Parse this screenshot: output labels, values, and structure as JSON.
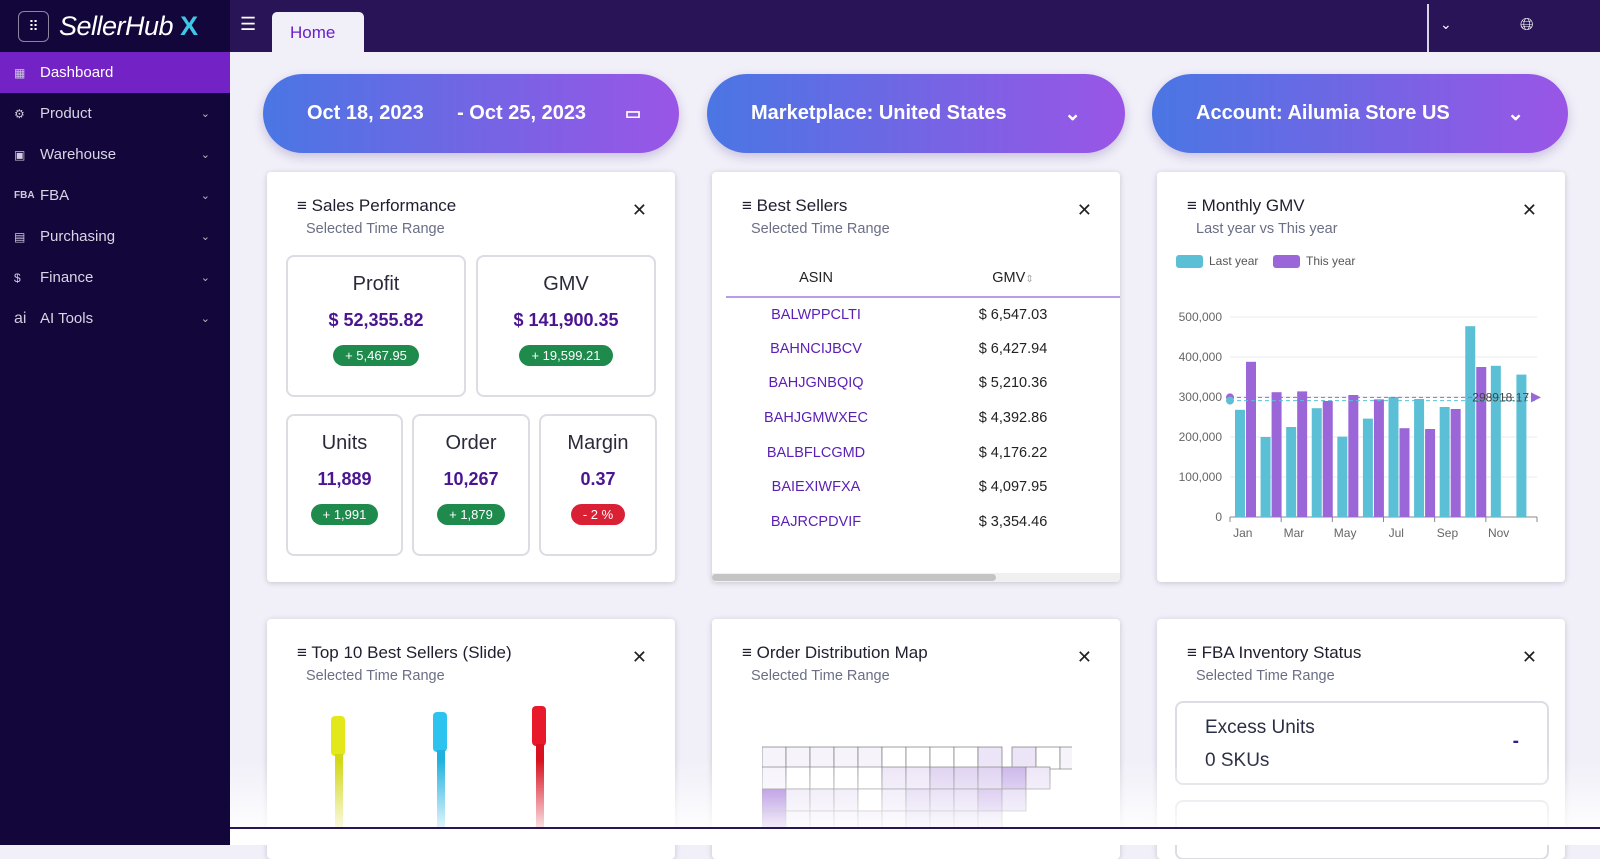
{
  "app": {
    "name": "SellerHub",
    "logo_mark": "X",
    "apps_icon": "grid-icon"
  },
  "sidebar": {
    "items": [
      {
        "label": "Dashboard",
        "icon": "dashboard-icon",
        "active": true
      },
      {
        "label": "Product",
        "icon": "product-icon"
      },
      {
        "label": "Warehouse",
        "icon": "warehouse-icon"
      },
      {
        "label": "FBA",
        "icon": "FBA"
      },
      {
        "label": "Purchasing",
        "icon": "purchasing-icon"
      },
      {
        "label": "Finance",
        "icon": "finance-icon"
      },
      {
        "label": "AI Tools",
        "icon": "ai"
      }
    ]
  },
  "topbar": {
    "tab": "Home"
  },
  "filters": {
    "date_start": "Oct 18, 2023",
    "date_end": "- Oct 25, 2023",
    "marketplace": "Marketplace: United States",
    "account": "Account: Ailumia Store US"
  },
  "sales": {
    "title": "Sales Performance",
    "subtitle": "Selected Time Range",
    "metrics": [
      {
        "label": "Profit",
        "value": "$ 52,355.82",
        "delta": "+ 5,467.95",
        "positive": true
      },
      {
        "label": "GMV",
        "value": "$ 141,900.35",
        "delta": "+ 19,599.21",
        "positive": true
      },
      {
        "label": "Units",
        "value": "11,889",
        "delta": "+ 1,991",
        "positive": true
      },
      {
        "label": "Order",
        "value": "10,267",
        "delta": "+ 1,879",
        "positive": true
      },
      {
        "label": "Margin",
        "value": "0.37",
        "delta": "- 2 %",
        "positive": false
      }
    ]
  },
  "best_sellers": {
    "title": "Best Sellers",
    "subtitle": "Selected Time Range",
    "columns": [
      "ASIN",
      "GMV"
    ],
    "rows": [
      [
        "BALWPPCLTI",
        "$ 6,547.03"
      ],
      [
        "BAHNCIJBCV",
        "$ 6,427.94"
      ],
      [
        "BAHJGNBQIQ",
        "$ 5,210.36"
      ],
      [
        "BAHJGMWXEC",
        "$ 4,392.86"
      ],
      [
        "BALBFLCGMD",
        "$ 4,176.22"
      ],
      [
        "BAIEXIWFXA",
        "$ 4,097.95"
      ],
      [
        "BAJRCPDVIF",
        "$ 3,354.46"
      ]
    ]
  },
  "monthly_gmv": {
    "title": "Monthly GMV",
    "subtitle": "Last year vs This year"
  },
  "chart_data": {
    "type": "bar",
    "title": "Monthly GMV",
    "subtitle": "Last year vs This year",
    "categories": [
      "Jan",
      "Feb",
      "Mar",
      "Apr",
      "May",
      "Jun",
      "Jul",
      "Aug",
      "Sep",
      "Oct",
      "Nov",
      "Dec"
    ],
    "xtick_labels": [
      "Jan",
      "Mar",
      "May",
      "Jul",
      "Sep",
      "Nov"
    ],
    "yticks": [
      "0",
      "100,000",
      "200,000",
      "300,000",
      "400,000",
      "500,000"
    ],
    "ylim": [
      0,
      500000
    ],
    "legend_position": "top-left",
    "grid": true,
    "series": [
      {
        "name": "Last year",
        "color": "#5bc0d6",
        "values": [
          268000,
          200000,
          225000,
          272000,
          201000,
          246000,
          300000,
          295000,
          275000,
          477000,
          378000,
          356000
        ]
      },
      {
        "name": "This year",
        "color": "#9b66d8",
        "values": [
          388000,
          312000,
          314000,
          290000,
          305000,
          294000,
          222000,
          220000,
          270000,
          375000,
          null,
          null
        ]
      }
    ],
    "mark_lines": [
      {
        "series": "This year",
        "label": "298918.17",
        "value": 298918.17
      },
      {
        "series": "Last year",
        "value": 291000
      }
    ]
  },
  "top10": {
    "title": "Top 10 Best Sellers (Slide)",
    "subtitle": "Selected Time Range"
  },
  "order_map": {
    "title": "Order Distribution Map",
    "subtitle": "Selected Time Range"
  },
  "fba": {
    "title": "FBA Inventory Status",
    "subtitle": "Selected Time Range",
    "excess_label": "Excess Units",
    "excess_value": "0 SKUs",
    "excess_delta": "-"
  }
}
